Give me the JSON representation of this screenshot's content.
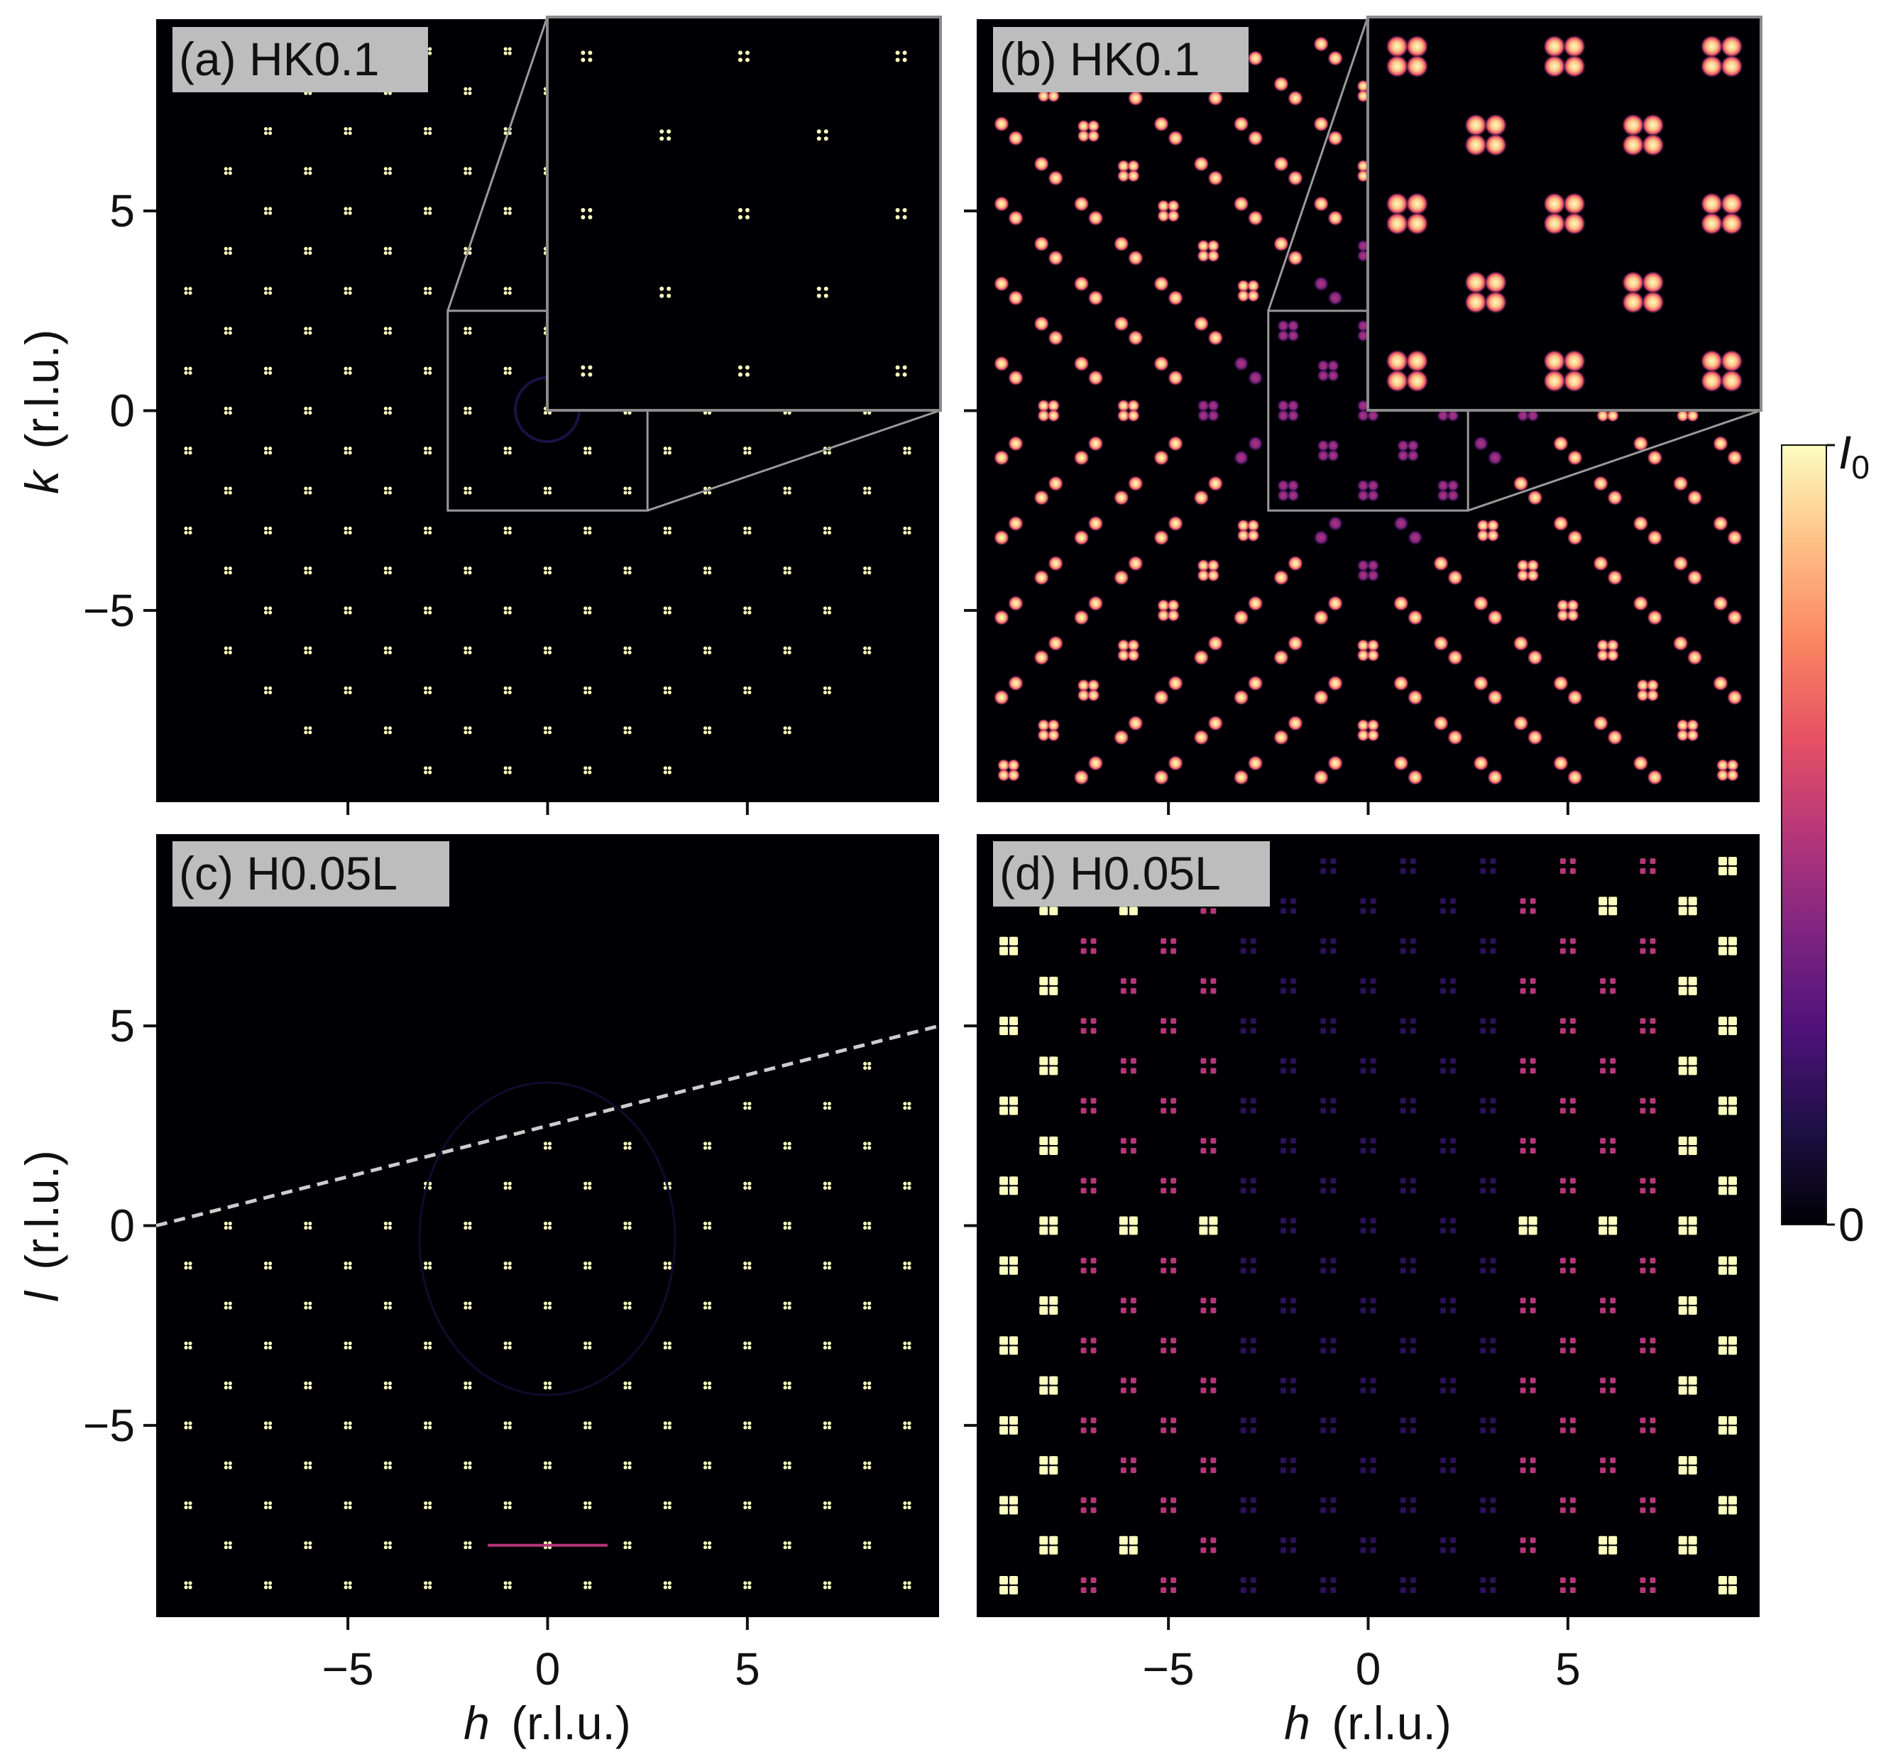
{
  "chart_data": [
    {
      "type": "heatmap",
      "panel_label": "(a) HK0.1",
      "xlabel": "",
      "ylabel_var": "k",
      "ylabel_unit": "(r.l.u.)",
      "x_ticks": [
        "−5",
        "0",
        "5"
      ],
      "y_ticks": [
        "5",
        "0",
        "−5"
      ],
      "x_tick_values": [
        -5,
        0,
        5
      ],
      "y_tick_values": [
        5,
        0,
        -5
      ],
      "xlim": [
        -9.8,
        9.8
      ],
      "ylim": [
        -9.8,
        9.8
      ],
      "peak_lattice": "square ~2 r.l.u., clusters of 4 spots",
      "inset": "zoom of region h,k in [-2.5, 2.5]"
    },
    {
      "type": "heatmap",
      "panel_label": "(b) HK0.1",
      "x_ticks": [
        "−5",
        "0",
        "5"
      ],
      "x_tick_values": [
        -5,
        0,
        5
      ],
      "xlim": [
        -9.8,
        9.8
      ],
      "ylim": [
        -9.8,
        9.8
      ],
      "inset": "zoom of region h,k in [-2.5, 2.5]"
    },
    {
      "type": "heatmap",
      "panel_label": "(c) H0.05L",
      "xlabel_var": "h",
      "xlabel_unit": "(r.l.u.)",
      "ylabel_var": "l",
      "ylabel_unit": "(r.l.u.)",
      "x_ticks": [
        "−5",
        "0",
        "5"
      ],
      "y_ticks": [
        "5",
        "0",
        "−5"
      ],
      "x_tick_values": [
        -5,
        0,
        5
      ],
      "y_tick_values": [
        5,
        0,
        -5
      ],
      "xlim": [
        -9.8,
        9.8
      ],
      "ylim": [
        -9.8,
        9.8
      ],
      "dashed_line": {
        "from": [
          -9.8,
          0
        ],
        "to": [
          9.8,
          5
        ]
      }
    },
    {
      "type": "heatmap",
      "panel_label": "(d) H0.05L",
      "xlabel_var": "h",
      "xlabel_unit": "(r.l.u.)",
      "x_ticks": [
        "−5",
        "0",
        "5"
      ],
      "x_tick_values": [
        -5,
        0,
        5
      ],
      "xlim": [
        -9.8,
        9.8
      ],
      "ylim": [
        -9.8,
        9.8
      ]
    }
  ],
  "colorbar": {
    "colormap": "magma",
    "max_label": "I",
    "max_sub": "0",
    "min_label": "0",
    "colors": [
      "#000004",
      "#1c1044",
      "#4f127b",
      "#812581",
      "#b5367a",
      "#e55064",
      "#fb8761",
      "#fec287",
      "#fcfdbf"
    ]
  }
}
